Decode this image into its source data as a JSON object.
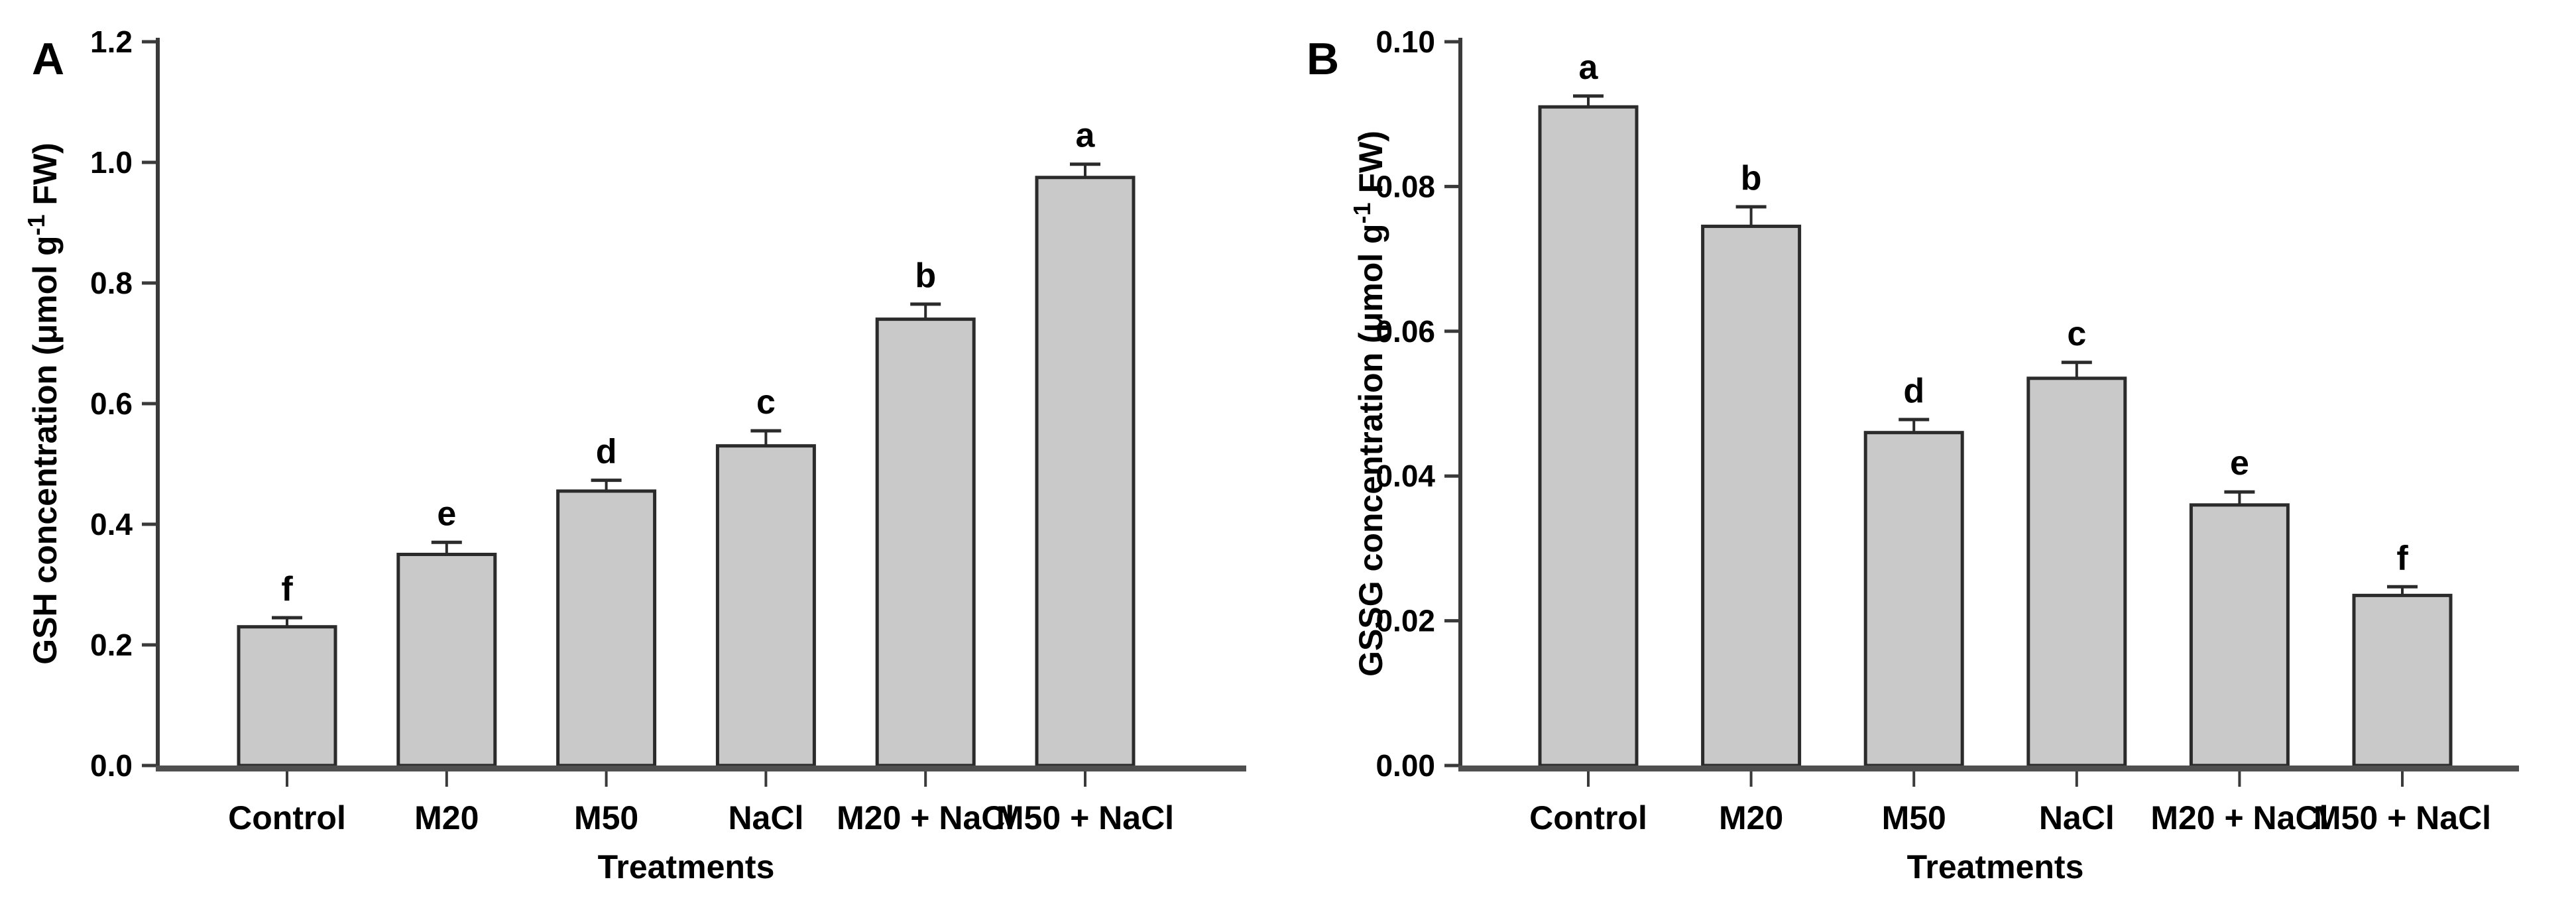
{
  "figure": {
    "background": "#ffffff",
    "bar_fill": "#c9c9c9",
    "bar_stroke": "#2b2b2b",
    "axis_color": "#3a3a3a",
    "baseline_color": "#4f4f4f",
    "error_bar_color": "#2b2b2b",
    "text_color": "#000000"
  },
  "chart_data": [
    {
      "type": "bar",
      "panel_label": "A",
      "title": "",
      "xlabel": "Treatments",
      "ylabel": "GSH concentration (μmol g⁻¹ FW)",
      "ylabel_parts": {
        "pre": "GSH concentration (μmol g",
        "sup": "-1",
        "post": " FW)"
      },
      "categories": [
        "Control",
        "M20",
        "M50",
        "NaCl",
        "M20 + NaCl",
        "M50 + NaCl"
      ],
      "values": [
        0.23,
        0.35,
        0.455,
        0.53,
        0.74,
        0.975
      ],
      "errors": [
        0.015,
        0.02,
        0.018,
        0.025,
        0.025,
        0.022
      ],
      "sig_letters": [
        "f",
        "e",
        "d",
        "c",
        "b",
        "a"
      ],
      "ylim": [
        0,
        1.2
      ],
      "ytick_step": 0.2,
      "ytick_labels": [
        "0.0",
        "0.2",
        "0.4",
        "0.6",
        "0.8",
        "1.0",
        "1.2"
      ],
      "grid": false,
      "legend": "none"
    },
    {
      "type": "bar",
      "panel_label": "B",
      "title": "",
      "xlabel": "Treatments",
      "ylabel": "GSSG concentration (μmol g⁻¹ FW)",
      "ylabel_parts": {
        "pre": "GSSG concentration (μmol g",
        "sup": "-1",
        "post": " FW)"
      },
      "categories": [
        "Control",
        "M20",
        "M50",
        "NaCl",
        "M20 + NaCl",
        "M50 + NaCl"
      ],
      "values": [
        0.091,
        0.0745,
        0.046,
        0.0535,
        0.036,
        0.0235
      ],
      "errors": [
        0.0015,
        0.0027,
        0.0018,
        0.0022,
        0.0018,
        0.0012
      ],
      "sig_letters": [
        "a",
        "b",
        "d",
        "c",
        "e",
        "f"
      ],
      "ylim": [
        0,
        0.1
      ],
      "ytick_step": 0.02,
      "ytick_labels": [
        "0.00",
        "0.02",
        "0.04",
        "0.06",
        "0.08",
        "0.10"
      ],
      "grid": false,
      "legend": "none"
    }
  ]
}
